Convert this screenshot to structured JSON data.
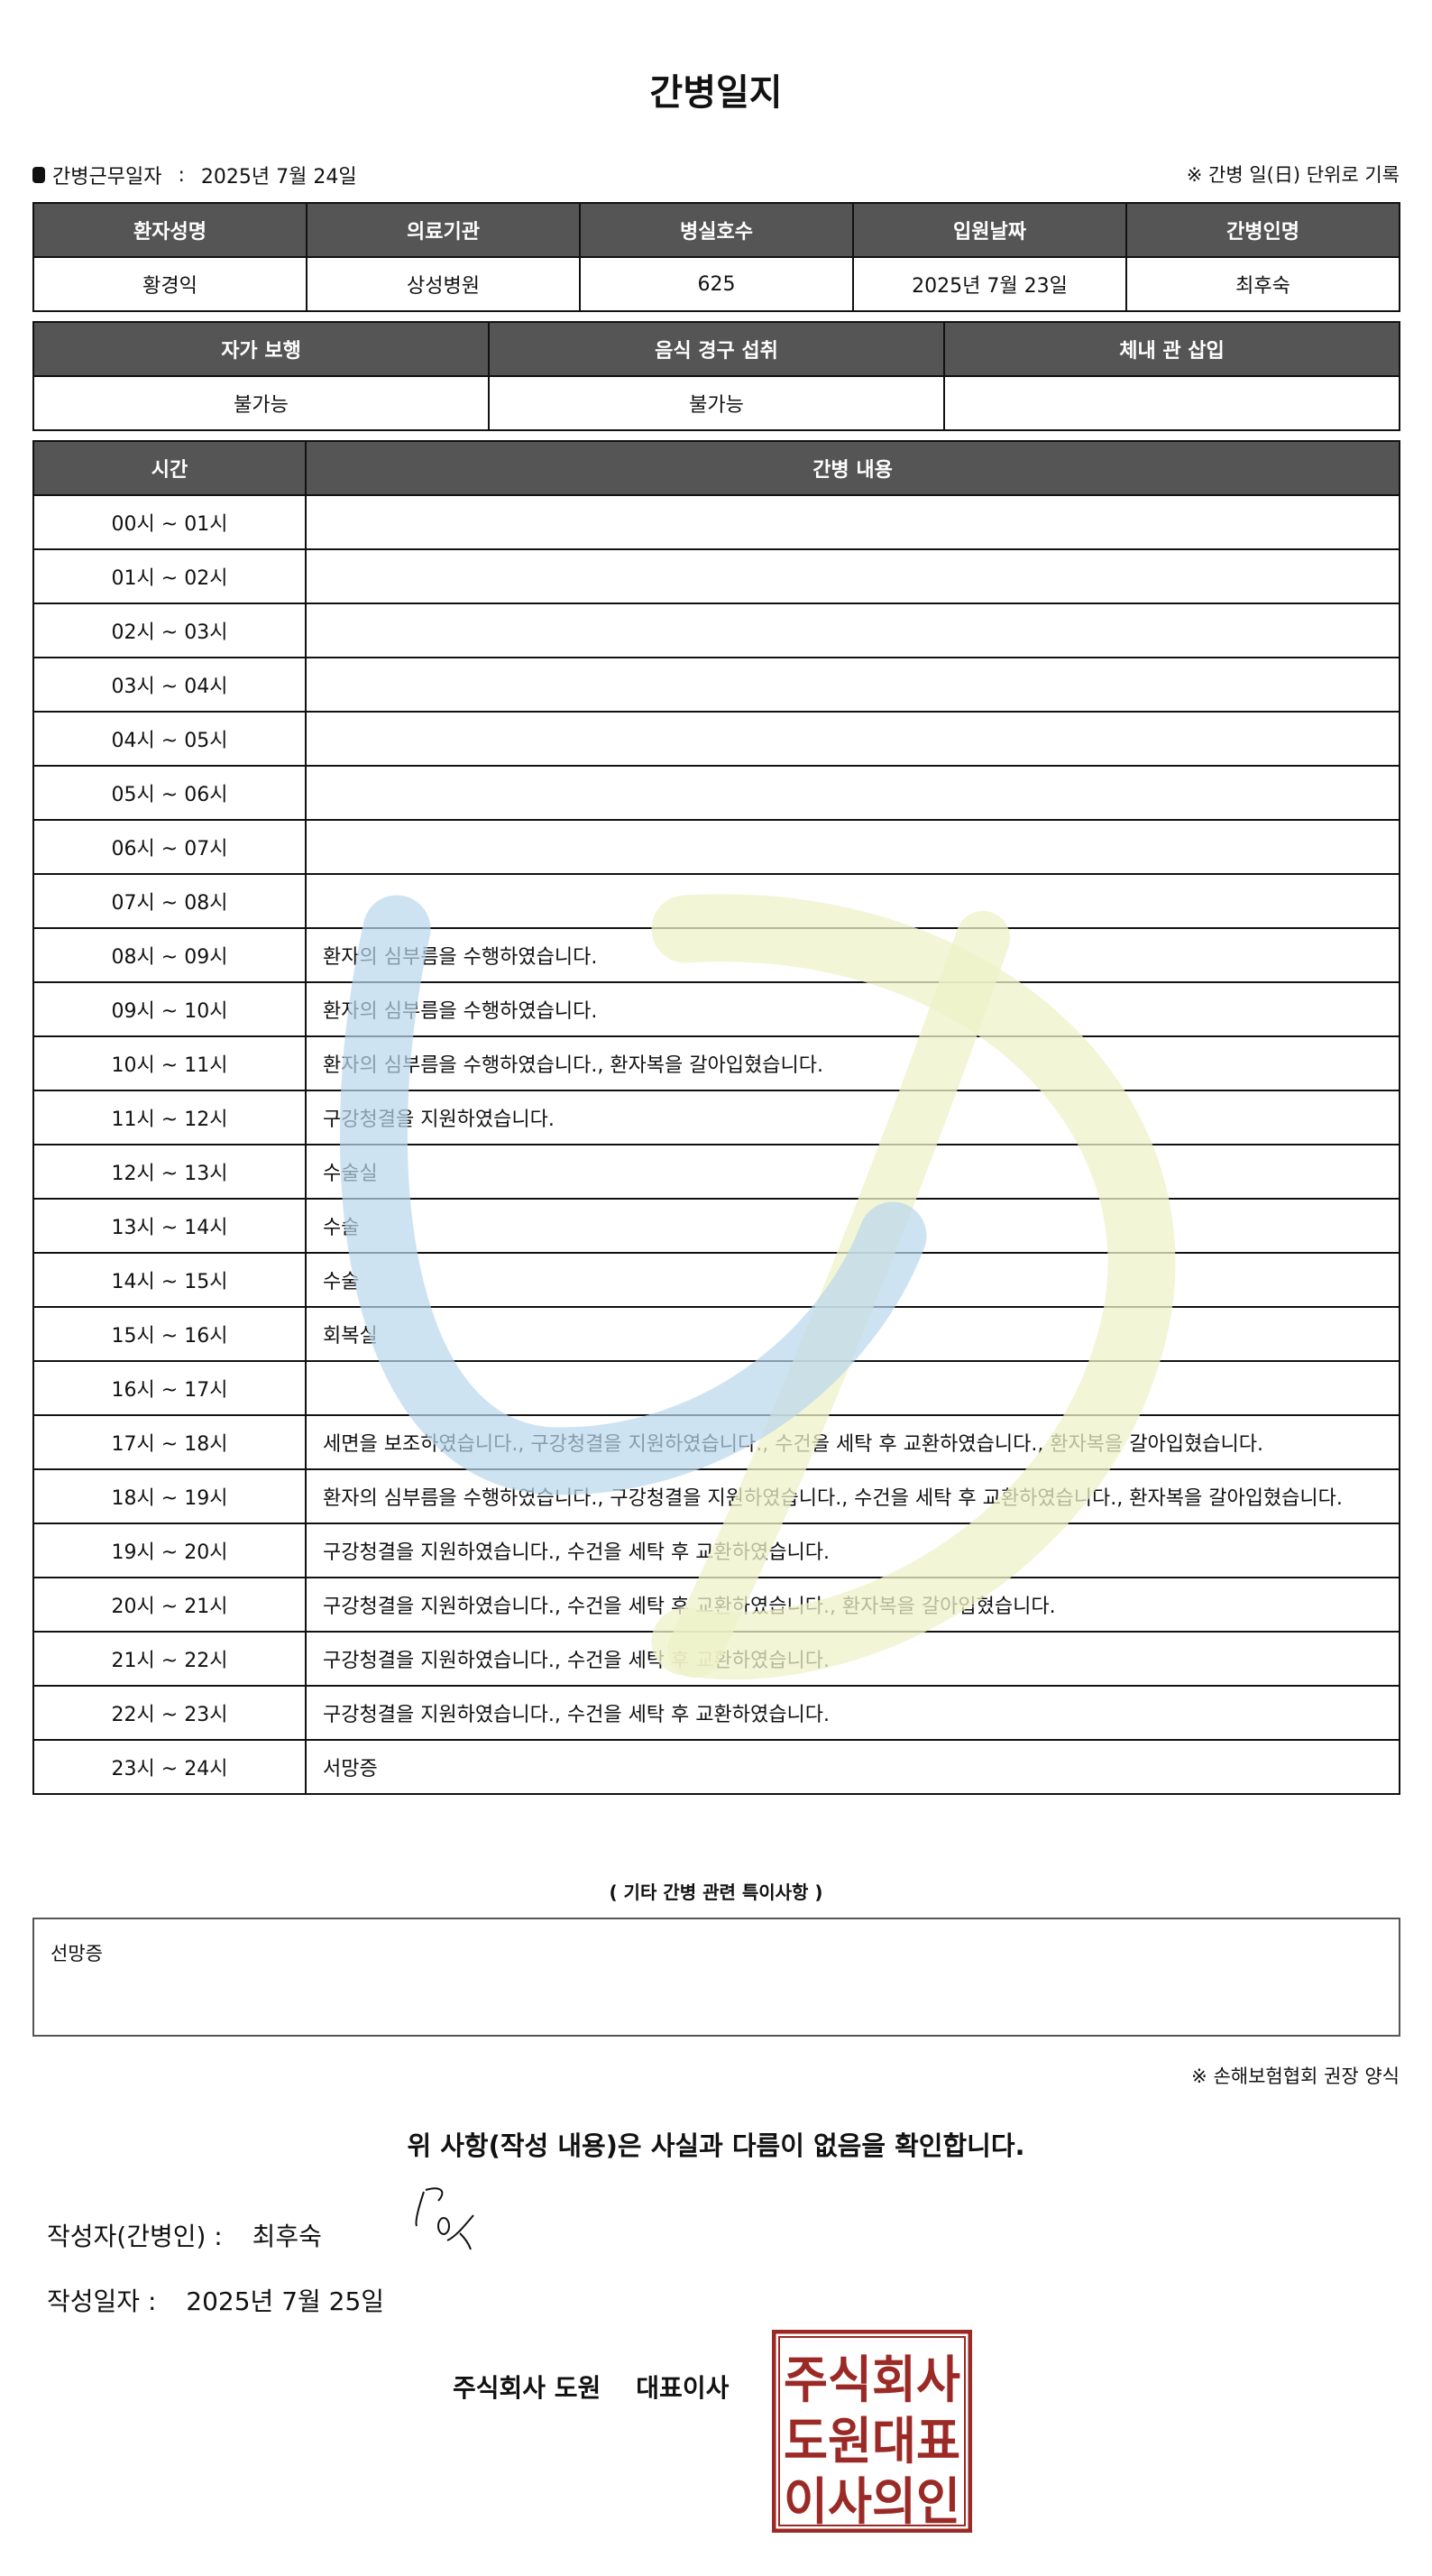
{
  "title": "간병일지",
  "work_date": {
    "label": "간병근무일자",
    "separator": ":",
    "value": "2025년 7월 24일"
  },
  "unit_note": "※ 간병 일(日) 단위로 기록",
  "info_table": {
    "headers": [
      "환자성명",
      "의료기관",
      "병실호수",
      "입원날짜",
      "간병인명"
    ],
    "values": [
      "황경익",
      "상성병원",
      "625",
      "2025년 7월 23일",
      "최후숙"
    ]
  },
  "status_table": {
    "headers": [
      "자가 보행",
      "음식 경구 섭취",
      "체내 관 삽입"
    ],
    "values": [
      "불가능",
      "불가능",
      ""
    ]
  },
  "log_table": {
    "headers": [
      "시간",
      "간병 내용"
    ],
    "rows": [
      {
        "time": "00시 ~ 01시",
        "content": ""
      },
      {
        "time": "01시 ~ 02시",
        "content": ""
      },
      {
        "time": "02시 ~ 03시",
        "content": ""
      },
      {
        "time": "03시 ~ 04시",
        "content": ""
      },
      {
        "time": "04시 ~ 05시",
        "content": ""
      },
      {
        "time": "05시 ~ 06시",
        "content": ""
      },
      {
        "time": "06시 ~ 07시",
        "content": ""
      },
      {
        "time": "07시 ~ 08시",
        "content": ""
      },
      {
        "time": "08시 ~ 09시",
        "content": "환자의 심부름을 수행하였습니다."
      },
      {
        "time": "09시 ~ 10시",
        "content": "환자의 심부름을 수행하였습니다."
      },
      {
        "time": "10시 ~ 11시",
        "content": "환자의 심부름을 수행하였습니다., 환자복을 갈아입혔습니다."
      },
      {
        "time": "11시 ~ 12시",
        "content": "구강청결을 지원하였습니다."
      },
      {
        "time": "12시 ~ 13시",
        "content": "수술실"
      },
      {
        "time": "13시 ~ 14시",
        "content": "수술"
      },
      {
        "time": "14시 ~ 15시",
        "content": "수술"
      },
      {
        "time": "15시 ~ 16시",
        "content": "회복실"
      },
      {
        "time": "16시 ~ 17시",
        "content": ""
      },
      {
        "time": "17시 ~ 18시",
        "content": "세면을 보조하였습니다., 구강청결을 지원하였습니다., 수건을 세탁 후 교환하였습니다., 환자복을 갈아입혔습니다."
      },
      {
        "time": "18시 ~ 19시",
        "content": "환자의 심부름을 수행하였습니다., 구강청결을 지원하였습니다., 수건을 세탁 후 교환하였습니다., 환자복을 갈아입혔습니다."
      },
      {
        "time": "19시 ~ 20시",
        "content": "구강청결을 지원하였습니다., 수건을 세탁 후 교환하였습니다."
      },
      {
        "time": "20시 ~ 21시",
        "content": "구강청결을 지원하였습니다., 수건을 세탁 후 교환하였습니다., 환자복을 갈아입혔습니다."
      },
      {
        "time": "21시 ~ 22시",
        "content": "구강청결을 지원하였습니다., 수건을 세탁 후 교환하였습니다."
      },
      {
        "time": "22시 ~ 23시",
        "content": "구강청결을 지원하였습니다., 수건을 세탁 후 교환하였습니다."
      },
      {
        "time": "23시 ~ 24시",
        "content": "서망증"
      }
    ]
  },
  "special_notes": {
    "title": "( 기타 간병 관련 특이사항 )",
    "content": "선망증"
  },
  "assoc_note": "※ 손해보험협회 권장 양식",
  "confirm_text": "위 사항(작성 내용)은 사실과 다름이 없음을 확인합니다.",
  "writer": {
    "label": "작성자(간병인) :",
    "name": "최후숙"
  },
  "written_date": {
    "label": "작성일자 :",
    "value": "2025년 7월 25일"
  },
  "company_sign": "주식회사 도원    대표이사",
  "stamp": {
    "text": [
      "주식회사",
      "도원대표",
      "이사의인"
    ],
    "color": "#9b2a26"
  },
  "colors": {
    "header_bg": "#555555",
    "watermark_blue": "#b9d7ec",
    "watermark_yellow": "#eef2c8"
  }
}
